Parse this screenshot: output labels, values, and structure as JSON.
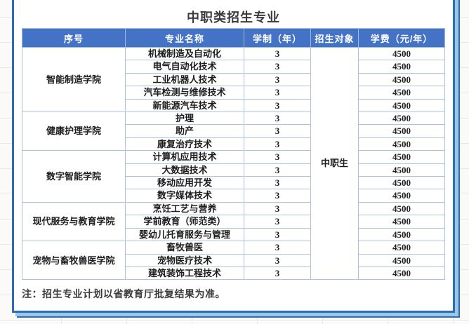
{
  "title": "中职类招生专业",
  "note": "注：招生专业计划以省教育厅批复结果为准。",
  "table": {
    "columns": [
      "序号",
      "专业名称",
      "学制（年）",
      "招生对象",
      "学费（元/年）"
    ],
    "enrollment_target": "中职生",
    "groups": [
      {
        "college": "智能制造学院",
        "majors": [
          {
            "name": "机械制造及自动化",
            "years": "3",
            "fee": "4500"
          },
          {
            "name": "电气自动化技术",
            "years": "3",
            "fee": "4500"
          },
          {
            "name": "工业机器人技术",
            "years": "3",
            "fee": "4500"
          },
          {
            "name": "汽车检测与维修技术",
            "years": "3",
            "fee": "4500"
          },
          {
            "name": "新能源汽车技术",
            "years": "3",
            "fee": "4500"
          }
        ]
      },
      {
        "college": "健康护理学院",
        "majors": [
          {
            "name": "护理",
            "years": "3",
            "fee": "4500"
          },
          {
            "name": "助产",
            "years": "3",
            "fee": "4500"
          },
          {
            "name": "康复治疗技术",
            "years": "3",
            "fee": "4500"
          }
        ]
      },
      {
        "college": "数字智能学院",
        "majors": [
          {
            "name": "计算机应用技术",
            "years": "3",
            "fee": "4500"
          },
          {
            "name": "大数据技术",
            "years": "3",
            "fee": "4500"
          },
          {
            "name": "移动应用开发",
            "years": "3",
            "fee": "4500"
          },
          {
            "name": "数字媒体技术",
            "years": "3",
            "fee": "4500"
          }
        ]
      },
      {
        "college": "现代服务与教育学院",
        "majors": [
          {
            "name": "烹饪工艺与营养",
            "years": "3",
            "fee": "4500"
          },
          {
            "name": "学前教育（师范类）",
            "years": "3",
            "fee": "4500"
          },
          {
            "name": "婴幼儿托育服务与管理",
            "years": "3",
            "fee": "4500"
          }
        ]
      },
      {
        "college": "宠物与畜牧兽医学院",
        "majors": [
          {
            "name": "畜牧兽医",
            "years": "3",
            "fee": "4500"
          },
          {
            "name": "宠物医疗技术",
            "years": "3",
            "fee": "4500"
          },
          {
            "name": "建筑装饰工程技术",
            "years": "3",
            "fee": "4500"
          }
        ]
      }
    ]
  },
  "colors": {
    "header_bg": "#4472c4",
    "header_text": "#ffffff",
    "cell_border": "#aec3e0",
    "body_text": "#1d1d1d",
    "page_border": "#2b6db6",
    "page_shadow": "#9cc6e8"
  }
}
